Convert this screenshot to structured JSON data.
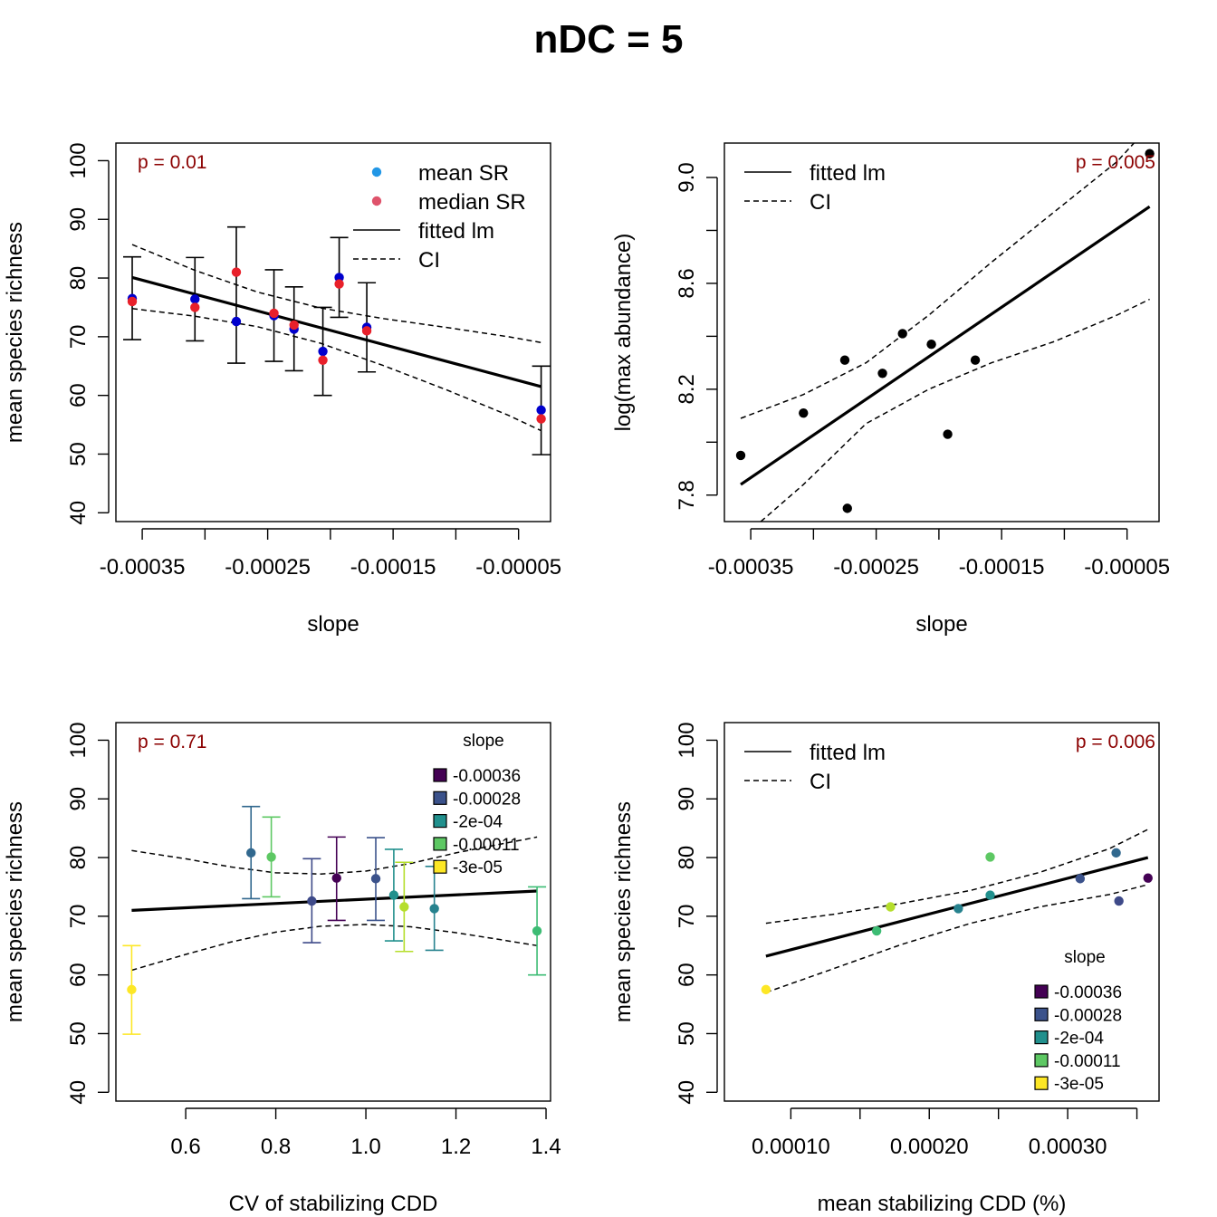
{
  "figure": {
    "title": "nDC = 5"
  },
  "chart_data": [
    {
      "type": "scatter",
      "xlabel": "slope",
      "ylabel": "mean species richness",
      "xlim": [
        -0.000371,
        -2.45e-05
      ],
      "ylim": [
        38.5,
        103
      ],
      "xticks": [
        -0.00035,
        -0.0003,
        -0.00025,
        -0.0002,
        -0.00015,
        -0.0001,
        -5e-05
      ],
      "xtick_labels": [
        "-0.00035",
        "",
        "-0.00025",
        "",
        "-0.00015",
        "",
        "-0.00005"
      ],
      "yticks": [
        40,
        50,
        60,
        70,
        80,
        90,
        100
      ],
      "ytick_labels": [
        "40",
        "50",
        "60",
        "70",
        "80",
        "90",
        "100"
      ],
      "p_label": "p = 0.01",
      "legend": {
        "position": "top-right",
        "items": [
          {
            "label": "mean SR",
            "kind": "point",
            "color": "#2297e6"
          },
          {
            "label": "median SR",
            "kind": "point",
            "color": "#df536b"
          },
          {
            "label": "fitted lm",
            "kind": "solid"
          },
          {
            "label": "CI",
            "kind": "dashed"
          }
        ]
      },
      "series": [
        {
          "name": "mean SR",
          "color": "#0000cd",
          "points": [
            [
              -0.000358,
              76.5
            ],
            [
              -0.000308,
              76.4
            ],
            [
              -0.000275,
              72.6
            ],
            [
              -0.000245,
              73.6
            ],
            [
              -0.000229,
              71.3
            ],
            [
              -0.000206,
              67.5
            ],
            [
              -0.000193,
              80.1
            ],
            [
              -0.000171,
              71.6
            ],
            [
              -3.2e-05,
              57.5
            ]
          ],
          "err_low": [
            69.5,
            69.3,
            65.5,
            65.8,
            64.2,
            60.0,
            73.3,
            64.0,
            49.9
          ],
          "err_high": [
            83.6,
            83.5,
            88.7,
            81.4,
            78.5,
            75.0,
            86.9,
            79.2,
            65.0
          ]
        },
        {
          "name": "median SR",
          "color": "#e8202a",
          "points": [
            [
              -0.000358,
              76.0
            ],
            [
              -0.000308,
              75.0
            ],
            [
              -0.000275,
              81.0
            ],
            [
              -0.000245,
              74.0
            ],
            [
              -0.000229,
              72.0
            ],
            [
              -0.000206,
              66.0
            ],
            [
              -0.000193,
              79.0
            ],
            [
              -0.000171,
              71.0
            ],
            [
              -3.2e-05,
              56.0
            ]
          ]
        }
      ],
      "fit": {
        "x": [
          -0.000358,
          -3.2e-05
        ],
        "y": [
          80.1,
          61.5
        ]
      },
      "ci_upper": [
        [
          -0.000358,
          85.7
        ],
        [
          -0.000308,
          81.3
        ],
        [
          -0.000258,
          77.6
        ],
        [
          -0.000208,
          74.9
        ],
        [
          -0.000158,
          73.1
        ],
        [
          -0.000108,
          71.6
        ],
        [
          -5.8e-05,
          70.0
        ],
        [
          -3.2e-05,
          69.0
        ]
      ],
      "ci_lower": [
        [
          -0.000358,
          74.8
        ],
        [
          -0.000308,
          73.5
        ],
        [
          -0.000258,
          71.7
        ],
        [
          -0.000208,
          68.9
        ],
        [
          -0.000158,
          65.1
        ],
        [
          -0.000108,
          61.0
        ],
        [
          -5.8e-05,
          56.6
        ],
        [
          -3.2e-05,
          54.0
        ]
      ]
    },
    {
      "type": "scatter",
      "xlabel": "slope",
      "ylabel": "log(max abundance)",
      "xlim": [
        -0.000371,
        -2.45e-05
      ],
      "ylim": [
        7.7,
        9.13
      ],
      "xticks": [
        -0.00035,
        -0.0003,
        -0.00025,
        -0.0002,
        -0.00015,
        -0.0001,
        -5e-05
      ],
      "xtick_labels": [
        "-0.00035",
        "",
        "-0.00025",
        "",
        "-0.00015",
        "",
        "-0.00005"
      ],
      "yticks": [
        7.8,
        8.0,
        8.2,
        8.4,
        8.6,
        8.8,
        9.0
      ],
      "ytick_labels": [
        "7.8",
        "",
        "8.2",
        "",
        "8.6",
        "",
        "9.0"
      ],
      "p_label": "p = 0.005",
      "legend": {
        "position": "top-left",
        "items": [
          {
            "label": "fitted lm",
            "kind": "solid"
          },
          {
            "label": "CI",
            "kind": "dashed"
          }
        ]
      },
      "series": [
        {
          "name": "",
          "color": "#000000",
          "points": [
            [
              -0.000358,
              7.95
            ],
            [
              -0.000308,
              8.11
            ],
            [
              -0.000275,
              8.31
            ],
            [
              -0.000273,
              7.75
            ],
            [
              -0.000245,
              8.26
            ],
            [
              -0.000229,
              8.41
            ],
            [
              -0.000206,
              8.37
            ],
            [
              -0.000193,
              8.03
            ],
            [
              -0.000171,
              8.31
            ],
            [
              -3.2e-05,
              9.09
            ]
          ]
        }
      ],
      "fit": {
        "x": [
          -0.000358,
          -3.2e-05
        ],
        "y": [
          7.84,
          8.89
        ]
      },
      "ci_upper": [
        [
          -0.000358,
          8.09
        ],
        [
          -0.000308,
          8.18
        ],
        [
          -0.000258,
          8.3
        ],
        [
          -0.000208,
          8.48
        ],
        [
          -0.000158,
          8.68
        ],
        [
          -0.000108,
          8.87
        ],
        [
          -5.8e-05,
          9.06
        ],
        [
          -4.45e-05,
          9.13
        ]
      ],
      "ci_lower": [
        [
          -0.000342,
          7.7
        ],
        [
          -0.000308,
          7.84
        ],
        [
          -0.000258,
          8.07
        ],
        [
          -0.000208,
          8.2
        ],
        [
          -0.000158,
          8.3
        ],
        [
          -0.000108,
          8.38
        ],
        [
          -5.8e-05,
          8.48
        ],
        [
          -3.2e-05,
          8.54
        ]
      ]
    },
    {
      "type": "scatter",
      "xlabel": "CV of stabilizing CDD",
      "ylabel": "mean species richness",
      "xlim": [
        0.445,
        1.41
      ],
      "ylim": [
        38.5,
        103
      ],
      "xticks": [
        0.6,
        0.8,
        1.0,
        1.2,
        1.4
      ],
      "xtick_labels": [
        "0.6",
        "0.8",
        "1.0",
        "1.2",
        "1.4"
      ],
      "yticks": [
        40,
        50,
        60,
        70,
        80,
        90,
        100
      ],
      "ytick_labels": [
        "40",
        "50",
        "60",
        "70",
        "80",
        "90",
        "100"
      ],
      "p_label": "p = 0.71",
      "legend": {
        "position": "top-right",
        "title": "slope",
        "items": [
          {
            "label": "-0.00036",
            "color": "#440154"
          },
          {
            "label": "-0.00028",
            "color": "#3b528b"
          },
          {
            "label": "-2e-04",
            "color": "#21908d"
          },
          {
            "label": "-0.00011",
            "color": "#5dc863"
          },
          {
            "label": "-3e-05",
            "color": "#fde725"
          }
        ]
      },
      "series": [
        {
          "name": "",
          "points": [
            [
              0.48,
              57.5
            ],
            [
              0.745,
              80.8
            ],
            [
              0.79,
              80.1
            ],
            [
              0.88,
              72.6
            ],
            [
              0.935,
              76.5
            ],
            [
              1.022,
              76.4
            ],
            [
              1.062,
              73.6
            ],
            [
              1.085,
              71.6
            ],
            [
              1.152,
              71.3
            ],
            [
              1.38,
              67.5
            ]
          ],
          "colors": [
            "#fde725",
            "#31688e",
            "#5dc863",
            "#3e4a89",
            "#440154",
            "#3b528b",
            "#21908d",
            "#b5de2b",
            "#26828e",
            "#3dbc74"
          ],
          "err_low": [
            49.9,
            73.0,
            73.3,
            65.5,
            69.3,
            69.3,
            65.8,
            64.0,
            64.2,
            60.0
          ],
          "err_high": [
            65.0,
            88.7,
            86.9,
            79.8,
            83.5,
            83.4,
            81.4,
            79.2,
            78.5,
            75.0
          ]
        }
      ],
      "fit": {
        "x": [
          0.48,
          1.38
        ],
        "y": [
          71.0,
          74.3
        ]
      },
      "ci_upper": [
        [
          0.48,
          81.2
        ],
        [
          0.6,
          79.8
        ],
        [
          0.7,
          78.4
        ],
        [
          0.8,
          77.4
        ],
        [
          0.9,
          77.2
        ],
        [
          1.0,
          77.7
        ],
        [
          1.1,
          79.0
        ],
        [
          1.2,
          80.8
        ],
        [
          1.3,
          82.3
        ],
        [
          1.38,
          83.5
        ]
      ],
      "ci_lower": [
        [
          0.48,
          60.8
        ],
        [
          0.6,
          63.5
        ],
        [
          0.7,
          65.6
        ],
        [
          0.8,
          67.3
        ],
        [
          0.9,
          68.3
        ],
        [
          1.0,
          68.6
        ],
        [
          1.1,
          68.2
        ],
        [
          1.2,
          67.2
        ],
        [
          1.3,
          66.0
        ],
        [
          1.38,
          65.0
        ]
      ]
    },
    {
      "type": "scatter",
      "xlabel": "mean stabilizing CDD (%)",
      "ylabel": "mean species richness",
      "xlim": [
        5.2e-05,
        0.000366
      ],
      "ylim": [
        38.5,
        103
      ],
      "xticks": [
        0.0001,
        0.00015,
        0.0002,
        0.00025,
        0.0003,
        0.00035
      ],
      "xtick_labels": [
        "0.00010",
        "",
        "0.00020",
        "",
        "0.00030",
        ""
      ],
      "yticks": [
        40,
        50,
        60,
        70,
        80,
        90,
        100
      ],
      "ytick_labels": [
        "40",
        "50",
        "60",
        "70",
        "80",
        "90",
        "100"
      ],
      "p_label": "p = 0.006",
      "legend": {
        "position": "top-left",
        "items": [
          {
            "label": "fitted lm",
            "kind": "solid"
          },
          {
            "label": "CI",
            "kind": "dashed"
          }
        ]
      },
      "legend2": {
        "position": "bottom-right",
        "title": "slope",
        "items": [
          {
            "label": "-0.00036",
            "color": "#440154"
          },
          {
            "label": "-0.00028",
            "color": "#3b528b"
          },
          {
            "label": "-2e-04",
            "color": "#21908d"
          },
          {
            "label": "-0.00011",
            "color": "#5dc863"
          },
          {
            "label": "-3e-05",
            "color": "#fde725"
          }
        ]
      },
      "series": [
        {
          "name": "",
          "points": [
            [
              8.2e-05,
              57.5
            ],
            [
              0.000162,
              67.5
            ],
            [
              0.000172,
              71.6
            ],
            [
              0.000221,
              71.3
            ],
            [
              0.000244,
              73.6
            ],
            [
              0.000244,
              80.1
            ],
            [
              0.000309,
              76.4
            ],
            [
              0.000335,
              80.8
            ],
            [
              0.000337,
              72.6
            ],
            [
              0.000358,
              76.5
            ]
          ],
          "colors": [
            "#fde725",
            "#3dbc74",
            "#b5de2b",
            "#26828e",
            "#21908d",
            "#5dc863",
            "#3b528b",
            "#31688e",
            "#3e4a89",
            "#440154"
          ]
        }
      ],
      "fit": {
        "x": [
          8.2e-05,
          0.000358
        ],
        "y": [
          63.2,
          80.0
        ]
      },
      "ci_upper": [
        [
          8.2e-05,
          68.8
        ],
        [
          0.00013,
          70.3
        ],
        [
          0.00018,
          72.2
        ],
        [
          0.00023,
          74.4
        ],
        [
          0.00028,
          77.5
        ],
        [
          0.00033,
          81.5
        ],
        [
          0.000358,
          84.8
        ]
      ],
      "ci_lower": [
        [
          8.2e-05,
          57.0
        ],
        [
          0.00013,
          61.0
        ],
        [
          0.00018,
          65.2
        ],
        [
          0.00023,
          68.8
        ],
        [
          0.00028,
          71.6
        ],
        [
          0.00033,
          73.7
        ],
        [
          0.000358,
          75.4
        ]
      ]
    }
  ]
}
